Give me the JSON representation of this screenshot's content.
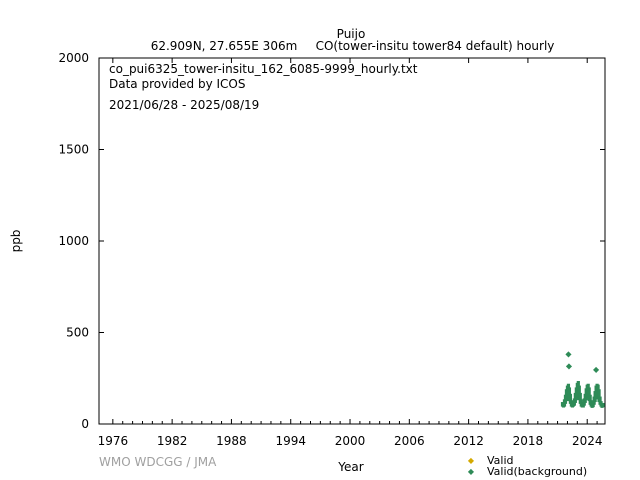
{
  "chart_data": {
    "type": "scatter",
    "title": "Puijo",
    "subtitle_left": "62.909N, 27.655E 306m",
    "subtitle_right": "CO(tower-insitu tower84 default) hourly",
    "filename": "co_pui6325_tower-insitu_162_6085-9999_hourly.txt",
    "provider": "Data provided by ICOS",
    "date_range": "2021/06/28 - 2025/08/19",
    "xlabel": "Year",
    "ylabel": "ppb",
    "xlim": [
      1974.6,
      2025.8
    ],
    "ylim": [
      0,
      2000
    ],
    "xticks": [
      1976,
      1982,
      1988,
      1994,
      2000,
      2006,
      2012,
      2018,
      2024
    ],
    "yticks": [
      0,
      500,
      1000,
      1500,
      2000
    ],
    "grid": false,
    "legend_position": "bottom-right",
    "series": [
      {
        "name": "Valid",
        "color": "#d4a900",
        "x": [],
        "y": []
      },
      {
        "name": "Valid(background)",
        "color": "#2e8b57",
        "x": [
          2021.5,
          2021.6,
          2021.7,
          2021.8,
          2021.9,
          2022.0,
          2022.1,
          2022.2,
          2022.3,
          2022.4,
          2022.5,
          2022.6,
          2022.7,
          2022.8,
          2022.9,
          2023.0,
          2023.1,
          2023.2,
          2023.3,
          2023.4,
          2023.5,
          2023.6,
          2023.7,
          2023.8,
          2023.9,
          2024.0,
          2024.1,
          2024.2,
          2024.3,
          2024.4,
          2024.5,
          2024.6,
          2024.7,
          2024.8,
          2024.9,
          2025.0,
          2025.1,
          2025.2,
          2025.3,
          2025.4,
          2025.5,
          2025.6,
          2022.1,
          2022.15,
          2024.9
        ],
        "y": [
          120,
          115,
          135,
          160,
          190,
          210,
          220,
          200,
          165,
          130,
          115,
          125,
          140,
          170,
          200,
          225,
          235,
          210,
          170,
          135,
          120,
          120,
          140,
          165,
          195,
          215,
          220,
          200,
          160,
          130,
          115,
          120,
          150,
          180,
          210,
          220,
          215,
          190,
          150,
          125,
          110,
          115,
          385,
          320,
          300
        ]
      },
      {
        "name": "",
        "color": "#2e8b57",
        "x": [
          2021.5,
          2021.6,
          2021.7,
          2021.8,
          2021.9,
          2022.0,
          2022.1,
          2022.2,
          2022.3,
          2022.4,
          2022.5,
          2022.6,
          2022.7,
          2022.8,
          2022.9,
          2023.0,
          2023.1,
          2023.2,
          2023.3,
          2023.4,
          2023.5,
          2023.6,
          2023.7,
          2023.8,
          2023.9,
          2024.0,
          2024.1,
          2024.2,
          2024.3,
          2024.4,
          2024.5,
          2024.6,
          2024.7,
          2024.8,
          2024.9,
          2025.0,
          2025.1,
          2025.2,
          2025.3,
          2025.4,
          2025.5,
          2025.6
        ],
        "y": [
          95,
          90,
          95,
          110,
          125,
          130,
          135,
          125,
          110,
          95,
          90,
          95,
          100,
          115,
          130,
          140,
          145,
          130,
          110,
          95,
          90,
          90,
          100,
          115,
          130,
          140,
          140,
          125,
          105,
          95,
          88,
          92,
          105,
          120,
          135,
          140,
          135,
          120,
          105,
          95,
          88,
          92
        ]
      }
    ]
  },
  "footer": {
    "credit": "WMO WDCGG / JMA"
  }
}
